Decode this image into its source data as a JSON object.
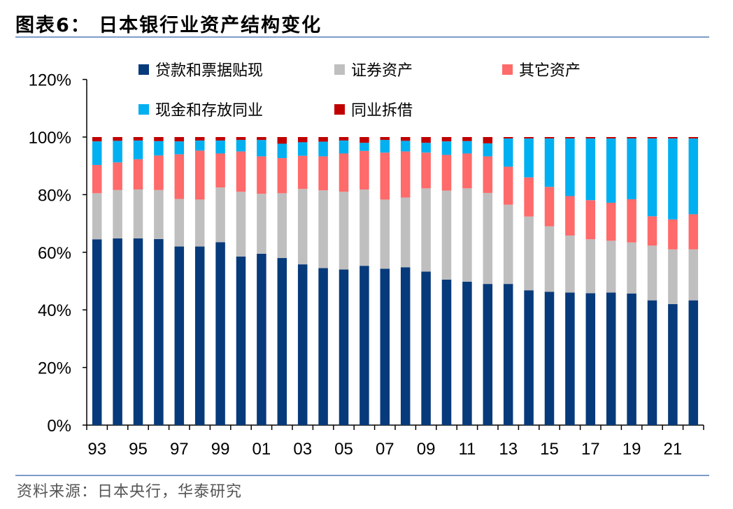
{
  "title": "图表6：  日本银行业资产结构变化",
  "source": "资料来源：日本央行，华泰研究",
  "colors": {
    "loans": "#073a7b",
    "securities": "#bfbfbf",
    "other": "#ff6a6a",
    "cash": "#00b0f0",
    "interbank": "#c00000",
    "rule": "#7f9cc9"
  },
  "chart_data": {
    "type": "bar",
    "stacked": true,
    "title": "",
    "xlabel": "",
    "ylabel": "",
    "ylim": [
      0,
      120
    ],
    "y_ticks": [
      "0%",
      "20%",
      "40%",
      "60%",
      "80%",
      "100%",
      "120%"
    ],
    "y_tick_values": [
      0,
      20,
      40,
      60,
      80,
      100,
      120
    ],
    "categories": [
      "93",
      "94",
      "95",
      "96",
      "97",
      "98",
      "99",
      "00",
      "01",
      "02",
      "03",
      "04",
      "05",
      "06",
      "07",
      "08",
      "09",
      "10",
      "11",
      "12",
      "13",
      "14",
      "15",
      "16",
      "17",
      "18",
      "19",
      "20",
      "21",
      "22"
    ],
    "x_tick_labels": [
      "93",
      "95",
      "97",
      "99",
      "01",
      "03",
      "05",
      "07",
      "09",
      "11",
      "13",
      "15",
      "17",
      "19",
      "21"
    ],
    "legend_rows": [
      [
        "贷款和票据贴现",
        "证券资产",
        "其它资产"
      ],
      [
        "现金和存放同业",
        "同业拆借"
      ]
    ],
    "series": [
      {
        "name": "贷款和票据贴现",
        "color_key": "loans",
        "values": [
          64.5,
          64.8,
          64.8,
          64.6,
          62.0,
          62.0,
          63.5,
          58.5,
          59.5,
          58.0,
          55.8,
          54.5,
          54.0,
          55.3,
          54.3,
          54.8,
          53.3,
          50.5,
          49.8,
          49.0,
          49.0,
          46.8,
          46.3,
          46.0,
          45.8,
          46.0,
          45.7,
          43.3,
          42.0,
          43.3
        ]
      },
      {
        "name": "证券资产",
        "color_key": "securities",
        "values": [
          16.0,
          16.8,
          17.0,
          17.0,
          16.5,
          16.3,
          19.0,
          22.5,
          20.8,
          22.5,
          26.2,
          27.0,
          27.0,
          26.5,
          24.0,
          24.2,
          28.9,
          30.9,
          32.4,
          31.6,
          27.5,
          25.6,
          22.7,
          19.8,
          18.7,
          18.0,
          17.7,
          19.0,
          19.0,
          17.7
        ]
      },
      {
        "name": "其它资产",
        "color_key": "other",
        "values": [
          9.8,
          9.6,
          10.5,
          12.0,
          15.5,
          17.0,
          11.8,
          14.0,
          13.0,
          12.2,
          11.5,
          11.8,
          13.3,
          13.4,
          16.3,
          16.0,
          12.4,
          12.4,
          12.1,
          12.7,
          13.2,
          13.6,
          13.7,
          13.7,
          13.6,
          13.2,
          15.0,
          10.2,
          10.4,
          12.2
        ]
      },
      {
        "name": "现金和存放同业",
        "color_key": "cash",
        "values": [
          8.2,
          7.5,
          6.5,
          5.0,
          4.5,
          3.5,
          4.5,
          4.0,
          5.7,
          5.0,
          4.7,
          5.1,
          4.5,
          2.8,
          4.4,
          3.7,
          3.4,
          4.7,
          4.3,
          4.5,
          9.8,
          13.5,
          16.8,
          20.0,
          21.4,
          22.3,
          21.1,
          27.0,
          28.1,
          26.3
        ]
      },
      {
        "name": "同业拆借",
        "color_key": "interbank",
        "values": [
          1.5,
          1.3,
          1.2,
          1.4,
          1.5,
          1.2,
          1.2,
          1.0,
          1.0,
          2.3,
          1.8,
          1.6,
          1.2,
          2.0,
          1.0,
          1.3,
          2.0,
          1.5,
          1.4,
          2.2,
          0.5,
          0.5,
          0.5,
          0.5,
          0.5,
          0.5,
          0.5,
          0.5,
          0.5,
          0.5
        ]
      }
    ]
  }
}
